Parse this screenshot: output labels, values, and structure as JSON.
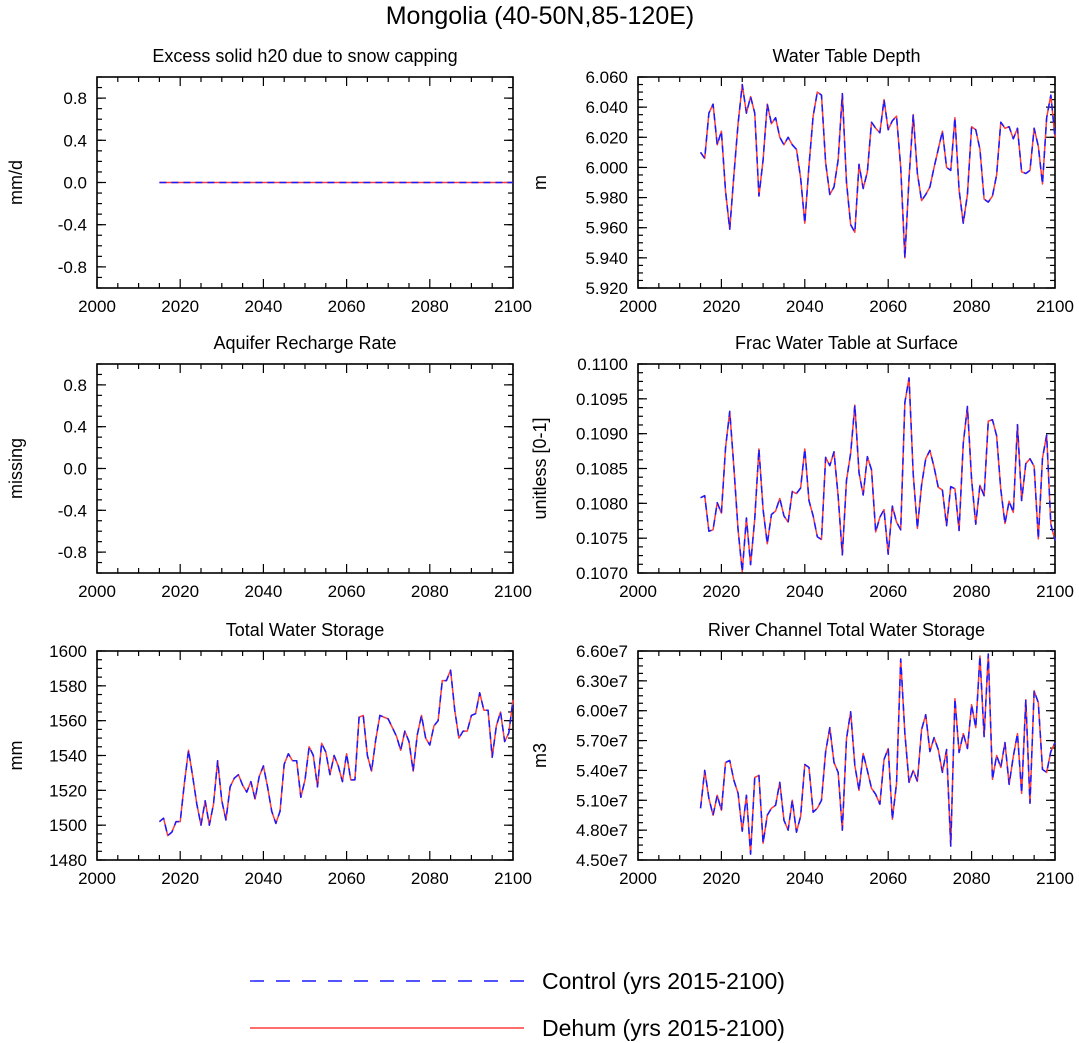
{
  "title": "Mongolia (40-50N,85-120E)",
  "colors": {
    "control": "#1a1aff",
    "dehum": "#ff3b3b",
    "axis": "#000000"
  },
  "legend": [
    {
      "label": "Control (yrs 2015-2100)",
      "color": "#1a1aff",
      "style": "dashed"
    },
    {
      "label": "Dehum (yrs 2015-2100)",
      "color": "#ff3b3b",
      "style": "solid"
    }
  ],
  "chart_data": [
    {
      "type": "line",
      "title": "Excess solid h20 due to snow capping",
      "ylabel": "mm/d",
      "xlim": [
        2000,
        2100
      ],
      "ylim": [
        -1.0,
        1.0
      ],
      "xticks": [
        2000,
        2020,
        2040,
        2060,
        2080,
        2100
      ],
      "yticks": [
        -0.8,
        -0.4,
        0.0,
        0.4,
        0.8
      ],
      "ytick_labels": [
        "-0.8",
        "-0.4",
        "0.0",
        "0.4",
        "0.8"
      ],
      "x_start": 2015,
      "series": [
        {
          "name": "Control (yrs 2015-2100)",
          "constant": 0.0
        },
        {
          "name": "Dehum (yrs 2015-2100)",
          "constant": 0.0
        }
      ]
    },
    {
      "type": "line",
      "title": "Water Table Depth",
      "ylabel": "m",
      "xlim": [
        2000,
        2100
      ],
      "ylim": [
        5.92,
        6.06
      ],
      "xticks": [
        2000,
        2020,
        2040,
        2060,
        2080,
        2100
      ],
      "yticks": [
        5.92,
        5.94,
        5.96,
        5.98,
        6.0,
        6.02,
        6.04,
        6.06
      ],
      "ytick_labels": [
        "5.920",
        "5.940",
        "5.960",
        "5.980",
        "6.000",
        "6.020",
        "6.040",
        "6.060"
      ],
      "x_start": 2015,
      "series": [
        {
          "name": "Control (yrs 2015-2100)",
          "values": [
            6.01,
            6.006,
            6.036,
            6.042,
            6.015,
            6.024,
            5.984,
            5.959,
            5.995,
            6.029,
            6.055,
            6.036,
            6.047,
            6.036,
            5.981,
            6.005,
            6.042,
            6.029,
            6.033,
            6.02,
            6.015,
            6.02,
            6.015,
            6.012,
            5.993,
            5.963,
            6.001,
            6.034,
            6.05,
            6.048,
            6.003,
            5.982,
            5.987,
            6.005,
            6.049,
            5.99,
            5.962,
            5.957,
            6.002,
            5.986,
            5.997,
            6.03,
            6.026,
            6.023,
            6.045,
            6.025,
            6.031,
            6.034,
            6.0,
            5.94,
            5.993,
            6.035,
            5.996,
            5.978,
            5.982,
            5.987,
            6.0,
            6.012,
            6.024,
            6.0,
            5.998,
            6.033,
            5.985,
            5.963,
            5.982,
            6.027,
            6.025,
            6.012,
            5.979,
            5.977,
            5.981,
            5.995,
            6.03,
            6.026,
            6.027,
            6.019,
            6.026,
            5.997,
            5.996,
            5.998,
            6.026,
            6.014,
            5.989,
            6.033,
            6.048,
            6.02
          ]
        },
        {
          "name": "Dehum (yrs 2015-2100)",
          "values": [
            6.01,
            6.006,
            6.036,
            6.042,
            6.015,
            6.024,
            5.984,
            5.959,
            5.995,
            6.029,
            6.055,
            6.036,
            6.047,
            6.036,
            5.981,
            6.005,
            6.042,
            6.029,
            6.033,
            6.02,
            6.015,
            6.02,
            6.015,
            6.012,
            5.993,
            5.963,
            6.001,
            6.034,
            6.05,
            6.048,
            6.003,
            5.982,
            5.987,
            6.005,
            6.049,
            5.99,
            5.962,
            5.957,
            6.002,
            5.986,
            5.997,
            6.03,
            6.026,
            6.023,
            6.045,
            6.025,
            6.031,
            6.034,
            6.0,
            5.94,
            5.993,
            6.035,
            5.996,
            5.978,
            5.982,
            5.987,
            6.0,
            6.012,
            6.024,
            6.0,
            5.998,
            6.033,
            5.985,
            5.963,
            5.982,
            6.027,
            6.025,
            6.012,
            5.979,
            5.977,
            5.981,
            5.995,
            6.03,
            6.026,
            6.027,
            6.019,
            6.026,
            5.997,
            5.996,
            5.998,
            6.026,
            6.014,
            5.989,
            6.033,
            6.048,
            6.02
          ]
        }
      ]
    },
    {
      "type": "line",
      "title": "Aquifer Recharge Rate",
      "ylabel": "missing",
      "xlim": [
        2000,
        2100
      ],
      "ylim": [
        -1.0,
        1.0
      ],
      "xticks": [
        2000,
        2020,
        2040,
        2060,
        2080,
        2100
      ],
      "yticks": [
        -0.8,
        -0.4,
        0.0,
        0.4,
        0.8
      ],
      "ytick_labels": [
        "-0.8",
        "-0.4",
        "0.0",
        "0.4",
        "0.8"
      ],
      "x_start": 2015,
      "series": []
    },
    {
      "type": "line",
      "title": "Frac Water Table at Surface",
      "ylabel": "unitless [0-1]",
      "xlim": [
        2000,
        2100
      ],
      "ylim": [
        0.107,
        0.11
      ],
      "xticks": [
        2000,
        2020,
        2040,
        2060,
        2080,
        2100
      ],
      "yticks": [
        0.107,
        0.1075,
        0.108,
        0.1085,
        0.109,
        0.1095,
        0.11
      ],
      "ytick_labels": [
        "0.1070",
        "0.1075",
        "0.1080",
        "0.1085",
        "0.1090",
        "0.1095",
        "0.1100"
      ],
      "x_start": 2015,
      "series": [
        {
          "name": "Control (yrs 2015-2100)",
          "values": [
            0.10808,
            0.10811,
            0.1076,
            0.10762,
            0.10801,
            0.10786,
            0.1088,
            0.10932,
            0.10851,
            0.10762,
            0.10702,
            0.10779,
            0.10712,
            0.10778,
            0.10878,
            0.10791,
            0.10742,
            0.10784,
            0.10789,
            0.10807,
            0.10782,
            0.10773,
            0.10817,
            0.10814,
            0.10822,
            0.10878,
            0.10804,
            0.10782,
            0.10752,
            0.10748,
            0.10866,
            0.10854,
            0.10874,
            0.1081,
            0.10726,
            0.10833,
            0.10872,
            0.10941,
            0.10844,
            0.10812,
            0.10867,
            0.10848,
            0.10759,
            0.1078,
            0.10791,
            0.10727,
            0.10796,
            0.10773,
            0.10762,
            0.10945,
            0.1098,
            0.10842,
            0.10764,
            0.10826,
            0.10864,
            0.10876,
            0.10852,
            0.10823,
            0.10819,
            0.10768,
            0.10824,
            0.10821,
            0.10761,
            0.10886,
            0.10939,
            0.10834,
            0.1077,
            0.10826,
            0.10811,
            0.10918,
            0.1092,
            0.10897,
            0.1082,
            0.10771,
            0.10803,
            0.10787,
            0.10913,
            0.10804,
            0.10857,
            0.10864,
            0.10853,
            0.10749,
            0.10865,
            0.10898,
            0.1077,
            0.10747
          ]
        },
        {
          "name": "Dehum (yrs 2015-2100)",
          "values": [
            0.10808,
            0.10811,
            0.1076,
            0.10762,
            0.10801,
            0.10786,
            0.1088,
            0.10932,
            0.10851,
            0.10762,
            0.10702,
            0.10779,
            0.10712,
            0.10778,
            0.10878,
            0.10791,
            0.10742,
            0.10784,
            0.10789,
            0.10807,
            0.10782,
            0.10773,
            0.10817,
            0.10814,
            0.10822,
            0.10878,
            0.10804,
            0.10782,
            0.10752,
            0.10748,
            0.10866,
            0.10854,
            0.10874,
            0.1081,
            0.10726,
            0.10833,
            0.10872,
            0.10941,
            0.10844,
            0.10812,
            0.10867,
            0.10848,
            0.10759,
            0.1078,
            0.10791,
            0.10727,
            0.10796,
            0.10773,
            0.10762,
            0.10945,
            0.1098,
            0.10842,
            0.10764,
            0.10826,
            0.10864,
            0.10876,
            0.10852,
            0.10823,
            0.10819,
            0.10768,
            0.10824,
            0.10821,
            0.10761,
            0.10886,
            0.10939,
            0.10834,
            0.1077,
            0.10826,
            0.10811,
            0.10918,
            0.1092,
            0.10897,
            0.1082,
            0.10771,
            0.10803,
            0.10787,
            0.10913,
            0.10804,
            0.10857,
            0.10864,
            0.10853,
            0.10749,
            0.10865,
            0.10898,
            0.1077,
            0.10747
          ]
        }
      ]
    },
    {
      "type": "line",
      "title": "Total Water Storage",
      "ylabel": "mm",
      "xlim": [
        2000,
        2100
      ],
      "ylim": [
        1480,
        1600
      ],
      "xticks": [
        2000,
        2020,
        2040,
        2060,
        2080,
        2100
      ],
      "yticks": [
        1480,
        1500,
        1520,
        1540,
        1560,
        1580,
        1600
      ],
      "ytick_labels": [
        "1480",
        "1500",
        "1520",
        "1540",
        "1560",
        "1580",
        "1600"
      ],
      "x_start": 2015,
      "series": [
        {
          "name": "Control (yrs 2015-2100)",
          "values": [
            1502,
            1504,
            1494,
            1496,
            1502,
            1502,
            1524,
            1543,
            1528,
            1512,
            1500,
            1514,
            1500,
            1512,
            1537,
            1514,
            1503,
            1522,
            1527,
            1529,
            1523,
            1519,
            1525,
            1515,
            1528,
            1534,
            1522,
            1508,
            1501,
            1508,
            1535,
            1541,
            1537,
            1537,
            1516,
            1526,
            1545,
            1540,
            1522,
            1547,
            1542,
            1529,
            1540,
            1534,
            1525,
            1541,
            1526,
            1526,
            1562,
            1563,
            1540,
            1531,
            1549,
            1563,
            1562,
            1561,
            1556,
            1551,
            1543,
            1554,
            1548,
            1531,
            1552,
            1563,
            1550,
            1546,
            1557,
            1560,
            1583,
            1583,
            1589,
            1566,
            1550,
            1554,
            1554,
            1563,
            1564,
            1576,
            1566,
            1566,
            1539,
            1557,
            1565,
            1548,
            1553,
            1572
          ]
        },
        {
          "name": "Dehum (yrs 2015-2100)",
          "values": [
            1502,
            1504,
            1494,
            1496,
            1502,
            1502,
            1524,
            1543,
            1528,
            1512,
            1500,
            1514,
            1500,
            1512,
            1537,
            1514,
            1503,
            1522,
            1527,
            1529,
            1523,
            1519,
            1525,
            1515,
            1528,
            1534,
            1522,
            1508,
            1501,
            1508,
            1535,
            1541,
            1537,
            1537,
            1516,
            1526,
            1545,
            1540,
            1522,
            1547,
            1542,
            1529,
            1540,
            1534,
            1525,
            1541,
            1526,
            1526,
            1562,
            1563,
            1540,
            1531,
            1549,
            1563,
            1562,
            1561,
            1556,
            1551,
            1543,
            1554,
            1548,
            1531,
            1552,
            1563,
            1550,
            1546,
            1557,
            1560,
            1583,
            1583,
            1589,
            1566,
            1550,
            1554,
            1554,
            1563,
            1564,
            1576,
            1566,
            1566,
            1539,
            1557,
            1565,
            1548,
            1553,
            1572
          ]
        }
      ]
    },
    {
      "type": "line",
      "title": "River Channel Total Water Storage",
      "ylabel": "m3",
      "xlim": [
        2000,
        2100
      ],
      "ylim": [
        45000000,
        66000000
      ],
      "xticks": [
        2000,
        2020,
        2040,
        2060,
        2080,
        2100
      ],
      "yticks": [
        45000000,
        48000000,
        51000000,
        54000000,
        57000000,
        60000000,
        63000000,
        66000000
      ],
      "ytick_labels": [
        "4.50e7",
        "4.80e7",
        "5.10e7",
        "5.40e7",
        "5.70e7",
        "6.00e7",
        "6.30e7",
        "6.60e7"
      ],
      "x_start": 2015,
      "series": [
        {
          "name": "Control (yrs 2015-2100)",
          "values": [
            50200000,
            54000000,
            51200000,
            49500000,
            51500000,
            50000000,
            54800000,
            55000000,
            53000000,
            51700000,
            47900000,
            51500000,
            45600000,
            53300000,
            53500000,
            46700000,
            49500000,
            50200000,
            50500000,
            52800000,
            49000000,
            48000000,
            51000000,
            47800000,
            49400000,
            54600000,
            54300000,
            49800000,
            50200000,
            51000000,
            55900000,
            58300000,
            54800000,
            53800000,
            48000000,
            57200000,
            59900000,
            54500000,
            52000000,
            55700000,
            54000000,
            52200000,
            51600000,
            50600000,
            55100000,
            56200000,
            49100000,
            52700000,
            65200000,
            57700000,
            52800000,
            54000000,
            52900000,
            58100000,
            59600000,
            55900000,
            57300000,
            56100000,
            53800000,
            56100000,
            46400000,
            61200000,
            55800000,
            57700000,
            56200000,
            60600000,
            58300000,
            65500000,
            57400000,
            65700000,
            53100000,
            55500000,
            54300000,
            56800000,
            52600000,
            55400000,
            57700000,
            51700000,
            61100000,
            50700000,
            62000000,
            60800000,
            54100000,
            53800000,
            55900000,
            56800000
          ]
        },
        {
          "name": "Dehum (yrs 2015-2100)",
          "values": [
            50200000,
            54000000,
            51200000,
            49500000,
            51500000,
            50000000,
            54800000,
            55000000,
            53000000,
            51700000,
            47900000,
            51500000,
            45600000,
            53300000,
            53500000,
            46700000,
            49500000,
            50200000,
            50500000,
            52800000,
            49000000,
            48000000,
            51000000,
            47800000,
            49400000,
            54600000,
            54300000,
            49800000,
            50200000,
            51000000,
            55900000,
            58300000,
            54800000,
            53800000,
            48000000,
            57200000,
            59900000,
            54500000,
            52000000,
            55700000,
            54000000,
            52200000,
            51600000,
            50600000,
            55100000,
            56200000,
            49100000,
            52700000,
            65200000,
            57700000,
            52800000,
            54000000,
            52900000,
            58100000,
            59600000,
            55900000,
            57300000,
            56100000,
            53800000,
            56100000,
            46400000,
            61200000,
            55800000,
            57700000,
            56200000,
            60600000,
            58300000,
            65500000,
            57400000,
            65700000,
            53100000,
            55500000,
            54300000,
            56800000,
            52600000,
            55400000,
            57700000,
            51700000,
            61100000,
            50700000,
            62000000,
            60800000,
            54100000,
            53800000,
            55900000,
            56800000
          ]
        }
      ]
    }
  ]
}
